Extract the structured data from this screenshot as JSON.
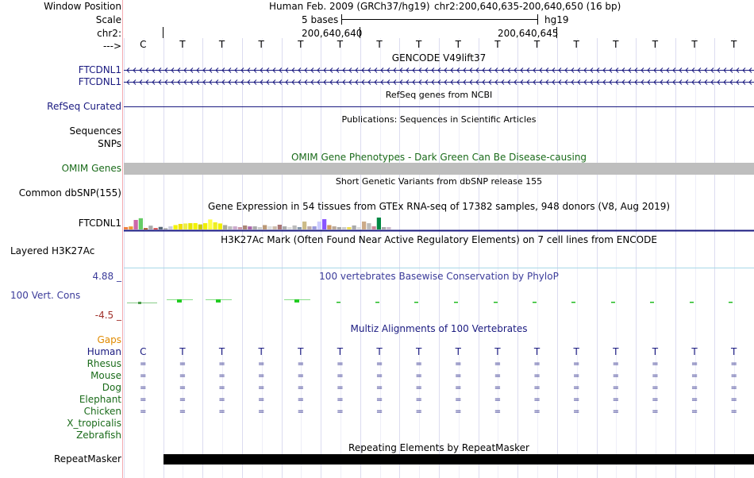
{
  "colors": {
    "navy": "#1a1a80",
    "darkgreen": "#1a6b1a",
    "gaps": "#e08a00",
    "cons_low": "#a0302a",
    "conservation": "#3b3b9a",
    "gtex_bars": [
      "#f08040",
      "#ee9933",
      "#cc66aa",
      "#66cc66",
      "#993300",
      "#aaaaaa",
      "#cc2222",
      "#556677",
      "#999999",
      "#ccccdd",
      "#f3f300",
      "#f0e000",
      "#eeee44",
      "#e6e600",
      "#f3f300",
      "#cccc00",
      "#f0f000",
      "#ffff44",
      "#eeee22",
      "#f0f000",
      "#aaaa99",
      "#bbbbbb",
      "#ccaacc",
      "#cc99aa",
      "#aa8877",
      "#aa66aa",
      "#aaaaaa",
      "#cccccc",
      "#bb9977",
      "#dddddd",
      "#ccbbaa",
      "#aa7777",
      "#aaaaaa",
      "#dddddd",
      "#bbbbbb",
      "#8899aa",
      "#ccbb88",
      "#bbaaaa",
      "#9999dd",
      "#ccccff",
      "#8855ff",
      "#cc9966",
      "#bbaa99",
      "#aaaaaa",
      "#cccccc",
      "#eedd55",
      "#aaaaaa",
      "#dddddd",
      "#ccaa88",
      "#bbbbbb",
      "#cc8899",
      "#008844",
      "#aaaaaa",
      "#ccbbcc"
    ]
  },
  "header": {
    "window_position_label": "Window Position",
    "assembly": "Human Feb. 2009 (GRCh37/hg19)",
    "position": "chr2:200,640,635-200,640,650 (16 bp)",
    "scale_label": "Scale",
    "scale_bases": "5 bases",
    "scale_db": "hg19",
    "chrom_label": "chr2:",
    "pos1": "200,640,640",
    "pos2": "200,640,645",
    "strand_label": "--->"
  },
  "bases": [
    "C",
    "T",
    "T",
    "T",
    "T",
    "T",
    "T",
    "T",
    "T",
    "T",
    "T",
    "T",
    "T",
    "T",
    "T",
    "T"
  ],
  "tracks": {
    "gencode_title": "GENCODE V49lift37",
    "gencode_genes": [
      "FTCDNL1",
      "FTCDNL1"
    ],
    "refseq_title": "RefSeq genes from NCBI",
    "refseq_label": "RefSeq Curated",
    "publications_title": "Publications: Sequences in Scientific Articles",
    "sequences_label": "Sequences",
    "snps_label": "SNPs",
    "omim_title": "OMIM Gene Phenotypes - Dark Green Can Be Disease-causing",
    "omim_label": "OMIM Genes",
    "dbsnp_title": "Short Genetic Variants from dbSNP release 155",
    "dbsnp_label": "Common dbSNP(155)",
    "gtex_title": "Gene Expression in 54 tissues from GTEx RNA-seq of 17382 samples, 948 donors (V8, Aug 2019)",
    "gtex_label": "FTCDNL1",
    "h3k27ac_title": "H3K27Ac Mark (Often Found Near Active Regulatory Elements) on 7 cell lines from ENCODE",
    "h3k27ac_label": "Layered H3K27Ac",
    "cons_title": "100 vertebrates Basewise Conservation by PhyloP",
    "cons_label": "100 Vert. Cons",
    "cons_max": "4.88 _",
    "cons_min": "-4.5 _",
    "multiz_title": "Multiz Alignments of 100 Vertebrates",
    "gaps_label": "Gaps",
    "species": [
      {
        "name": "Human",
        "row": "bases"
      },
      {
        "name": "Rhesus",
        "row": "eq"
      },
      {
        "name": "Mouse",
        "row": "eq"
      },
      {
        "name": "Dog",
        "row": "eq"
      },
      {
        "name": "Elephant",
        "row": "eq"
      },
      {
        "name": "Chicken",
        "row": "eq"
      },
      {
        "name": "X_tropicalis",
        "row": "none"
      },
      {
        "name": "Zebrafish",
        "row": "none"
      }
    ],
    "eq_symbol": "=",
    "repeat_title": "Repeating Elements by RepeatMasker",
    "repeat_label": "RepeatMasker"
  },
  "chart_data": {
    "type": "bar",
    "title": "Gene Expression in 54 tissues from GTEx RNA-seq of 17382 samples, 948 donors (V8, Aug 2019)",
    "series_label": "FTCDNL1",
    "xlabel": "",
    "ylabel": "",
    "ylim": [
      0,
      20
    ],
    "values": [
      2.5,
      3.2,
      10,
      11.8,
      1.3,
      4,
      1.3,
      2.7,
      1.2,
      3.3,
      4.6,
      5.8,
      6.3,
      6.6,
      6.7,
      5.3,
      6.6,
      10.5,
      7.5,
      6.3,
      4.6,
      3.3,
      3.3,
      2.5,
      4.2,
      3.2,
      3.3,
      2.5,
      4.6,
      3.3,
      3.3,
      5,
      3.3,
      2.5,
      4.2,
      2.5,
      8.3,
      3.3,
      3.3,
      8.3,
      10.8,
      4.6,
      3.3,
      2.5,
      2.5,
      2.5,
      4.2,
      2.5,
      8.3,
      6.6,
      3.3,
      12.5,
      2.5,
      2.5
    ]
  }
}
